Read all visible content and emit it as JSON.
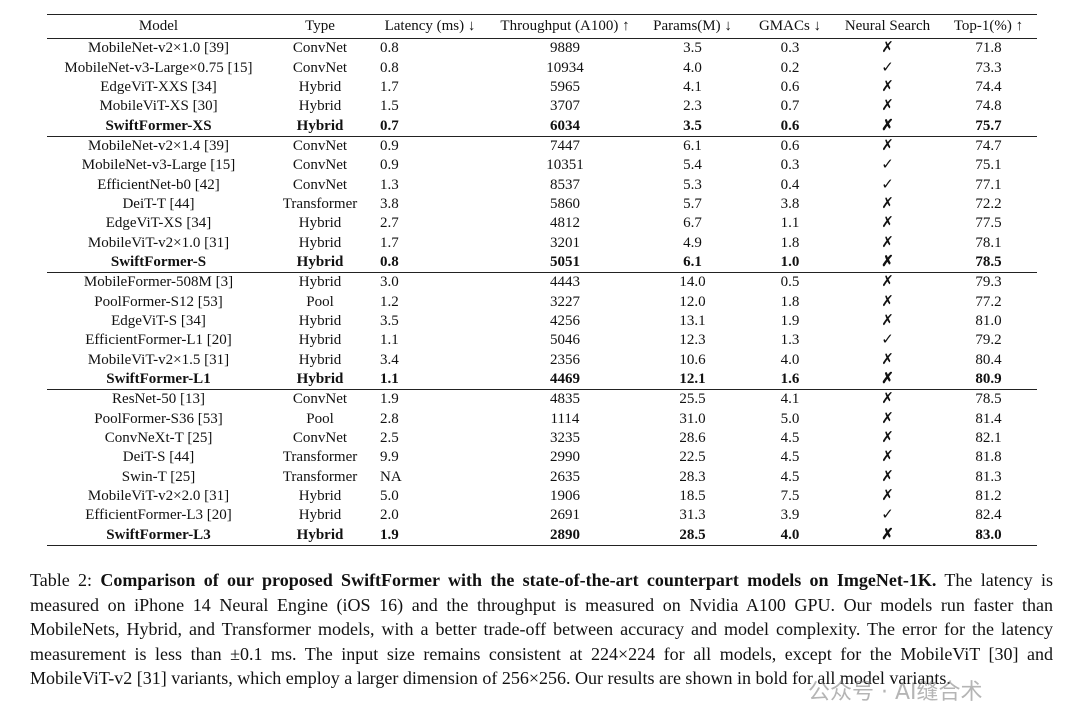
{
  "table": {
    "header": [
      "Model",
      "Type",
      "Latency (ms) ↓",
      "Throughput (A100) ↑",
      "Params(M) ↓",
      "GMACs ↓",
      "Neural Search",
      "Top-1(%) ↑"
    ],
    "groups": [
      [
        [
          "MobileNet-v2×1.0 [39]",
          "ConvNet",
          "0.8",
          "9889",
          "3.5",
          "0.3",
          "✗",
          "71.8"
        ],
        [
          "MobileNet-v3-Large×0.75 [15]",
          "ConvNet",
          "0.8",
          "10934",
          "4.0",
          "0.2",
          "✓",
          "73.3"
        ],
        [
          "EdgeViT-XXS [34]",
          "Hybrid",
          "1.7",
          "5965",
          "4.1",
          "0.6",
          "✗",
          "74.4"
        ],
        [
          "MobileViT-XS [30]",
          "Hybrid",
          "1.5",
          "3707",
          "2.3",
          "0.7",
          "✗",
          "74.8"
        ],
        [
          "SwiftFormer-XS",
          "Hybrid",
          "0.7",
          "6034",
          "3.5",
          "0.6",
          "✗",
          "75.7"
        ]
      ],
      [
        [
          "MobileNet-v2×1.4 [39]",
          "ConvNet",
          "0.9",
          "7447",
          "6.1",
          "0.6",
          "✗",
          "74.7"
        ],
        [
          "MobileNet-v3-Large [15]",
          "ConvNet",
          "0.9",
          "10351",
          "5.4",
          "0.3",
          "✓",
          "75.1"
        ],
        [
          "EfficientNet-b0 [42]",
          "ConvNet",
          "1.3",
          "8537",
          "5.3",
          "0.4",
          "✓",
          "77.1"
        ],
        [
          "DeiT-T [44]",
          "Transformer",
          "3.8",
          "5860",
          "5.7",
          "3.8",
          "✗",
          "72.2"
        ],
        [
          "EdgeViT-XS [34]",
          "Hybrid",
          "2.7",
          "4812",
          "6.7",
          "1.1",
          "✗",
          "77.5"
        ],
        [
          "MobileViT-v2×1.0 [31]",
          "Hybrid",
          "1.7",
          "3201",
          "4.9",
          "1.8",
          "✗",
          "78.1"
        ],
        [
          "SwiftFormer-S",
          "Hybrid",
          "0.8",
          "5051",
          "6.1",
          "1.0",
          "✗",
          "78.5"
        ]
      ],
      [
        [
          "MobileFormer-508M [3]",
          "Hybrid",
          "3.0",
          "4443",
          "14.0",
          "0.5",
          "✗",
          "79.3"
        ],
        [
          "PoolFormer-S12 [53]",
          "Pool",
          "1.2",
          "3227",
          "12.0",
          "1.8",
          "✗",
          "77.2"
        ],
        [
          "EdgeViT-S [34]",
          "Hybrid",
          "3.5",
          "4256",
          "13.1",
          "1.9",
          "✗",
          "81.0"
        ],
        [
          "EfficientFormer-L1 [20]",
          "Hybrid",
          "1.1",
          "5046",
          "12.3",
          "1.3",
          "✓",
          "79.2"
        ],
        [
          "MobileViT-v2×1.5 [31]",
          "Hybrid",
          "3.4",
          "2356",
          "10.6",
          "4.0",
          "✗",
          "80.4"
        ],
        [
          "SwiftFormer-L1",
          "Hybrid",
          "1.1",
          "4469",
          "12.1",
          "1.6",
          "✗",
          "80.9"
        ]
      ],
      [
        [
          "ResNet-50 [13]",
          "ConvNet",
          "1.9",
          "4835",
          "25.5",
          "4.1",
          "✗",
          "78.5"
        ],
        [
          "PoolFormer-S36 [53]",
          "Pool",
          "2.8",
          "1114",
          "31.0",
          "5.0",
          "✗",
          "81.4"
        ],
        [
          "ConvNeXt-T [25]",
          "ConvNet",
          "2.5",
          "3235",
          "28.6",
          "4.5",
          "✗",
          "82.1"
        ],
        [
          "DeiT-S [44]",
          "Transformer",
          "9.9",
          "2990",
          "22.5",
          "4.5",
          "✗",
          "81.8"
        ],
        [
          "Swin-T [25]",
          "Transformer",
          "NA",
          "2635",
          "28.3",
          "4.5",
          "✗",
          "81.3"
        ],
        [
          "MobileViT-v2×2.0 [31]",
          "Hybrid",
          "5.0",
          "1906",
          "18.5",
          "7.5",
          "✗",
          "81.2"
        ],
        [
          "EfficientFormer-L3 [20]",
          "Hybrid",
          "2.0",
          "2691",
          "31.3",
          "3.9",
          "✓",
          "82.4"
        ],
        [
          "SwiftFormer-L3",
          "Hybrid",
          "1.9",
          "2890",
          "28.5",
          "4.0",
          "✗",
          "83.0"
        ]
      ]
    ]
  },
  "caption": {
    "label": "Table 2:",
    "title": "Comparison of our proposed SwiftFormer with the state-of-the-art counterpart models on ImgeNet-1K.",
    "text": "The latency is measured on iPhone 14 Neural Engine (iOS 16) and the throughput is measured on Nvidia A100 GPU. Our models run faster than MobileNets, Hybrid, and Transformer models, with a better trade-off between accuracy and model complexity. The error for the latency measurement is less than ±0.1 ms. The input size remains consistent at 224×224 for all models, except for the MobileViT [30] and MobileViT-v2 [31] variants, which employ a larger dimension of 256×256. Our results are shown in bold for all model variants."
  },
  "watermark": "公众号 · AI缝合术"
}
